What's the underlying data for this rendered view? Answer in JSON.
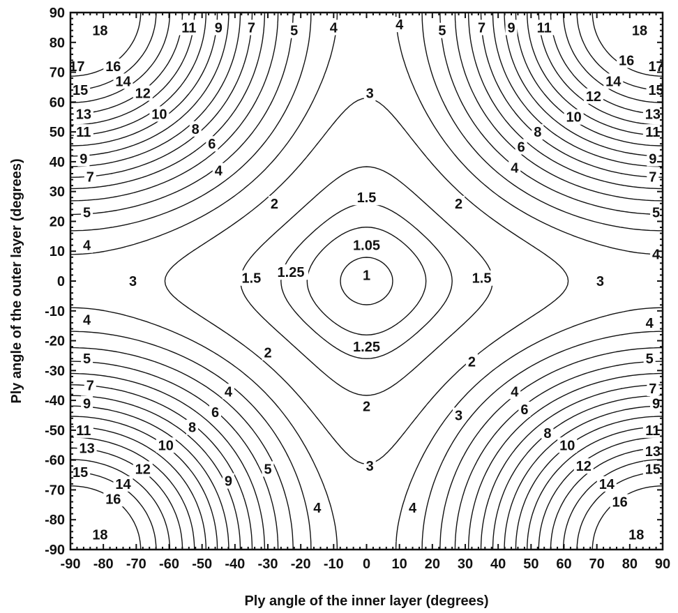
{
  "chart_data": {
    "type": "contour",
    "xlabel": "Ply angle of the inner layer (degrees)",
    "ylabel": "Ply angle of the outer layer (degrees)",
    "xlim": [
      -90,
      90
    ],
    "ylim": [
      -90,
      90
    ],
    "x_ticks": [
      "-90",
      "-80",
      "-70",
      "-60",
      "-50",
      "-40",
      "-30",
      "-20",
      "-10",
      "0",
      "10",
      "20",
      "30",
      "40",
      "50",
      "60",
      "70",
      "80",
      "90"
    ],
    "y_ticks": [
      "90",
      "80",
      "70",
      "60",
      "50",
      "40",
      "30",
      "20",
      "10",
      "0",
      "-10",
      "-20",
      "-30",
      "-40",
      "-50",
      "-60",
      "-70",
      "-80",
      "-90"
    ],
    "grid": false,
    "legend": "none",
    "contour_levels": [
      1.05,
      1.25,
      1.5,
      2,
      3,
      4,
      5,
      6,
      7,
      8,
      9,
      10,
      11,
      12,
      13,
      14,
      15,
      16,
      17,
      18
    ],
    "contour_labels": [
      {
        "text": "1",
        "x": 0,
        "y": 2
      },
      {
        "text": "1.05",
        "x": 0,
        "y": 12
      },
      {
        "text": "1.25",
        "x": -23,
        "y": 3
      },
      {
        "text": "1.25",
        "x": 0,
        "y": -22
      },
      {
        "text": "1.5",
        "x": -35,
        "y": 1
      },
      {
        "text": "1.5",
        "x": 35,
        "y": 1
      },
      {
        "text": "1.5",
        "x": 0,
        "y": 28
      },
      {
        "text": "2",
        "x": -28,
        "y": 26
      },
      {
        "text": "2",
        "x": 28,
        "y": 26
      },
      {
        "text": "2",
        "x": -30,
        "y": -24
      },
      {
        "text": "2",
        "x": 32,
        "y": -27
      },
      {
        "text": "2",
        "x": 0,
        "y": -42
      },
      {
        "text": "3",
        "x": -71,
        "y": 0
      },
      {
        "text": "3",
        "x": 71,
        "y": 0
      },
      {
        "text": "3",
        "x": 1,
        "y": 63
      },
      {
        "text": "3",
        "x": 1,
        "y": -62
      },
      {
        "text": "3",
        "x": 28,
        "y": -45
      },
      {
        "text": "4",
        "x": -45,
        "y": 37
      },
      {
        "text": "4",
        "x": 45,
        "y": 38
      },
      {
        "text": "4",
        "x": -42,
        "y": -37
      },
      {
        "text": "4",
        "x": 45,
        "y": -37
      },
      {
        "text": "4",
        "x": -85,
        "y": 12
      },
      {
        "text": "4",
        "x": 88,
        "y": 9
      },
      {
        "text": "4",
        "x": -85,
        "y": -13
      },
      {
        "text": "4",
        "x": 86,
        "y": -14
      },
      {
        "text": "4",
        "x": -10,
        "y": 85
      },
      {
        "text": "4",
        "x": 10,
        "y": 86
      },
      {
        "text": "4",
        "x": -15,
        "y": -76
      },
      {
        "text": "4",
        "x": 14,
        "y": -76
      },
      {
        "text": "5",
        "x": -85,
        "y": 23
      },
      {
        "text": "5",
        "x": 88,
        "y": 23
      },
      {
        "text": "5",
        "x": -85,
        "y": -26
      },
      {
        "text": "5",
        "x": 86,
        "y": -26
      },
      {
        "text": "5",
        "x": -22,
        "y": 84
      },
      {
        "text": "5",
        "x": 23,
        "y": 84
      },
      {
        "text": "5",
        "x": -30,
        "y": -63
      },
      {
        "text": "6",
        "x": -47,
        "y": 46
      },
      {
        "text": "6",
        "x": 47,
        "y": 45
      },
      {
        "text": "6",
        "x": -46,
        "y": -44
      },
      {
        "text": "6",
        "x": 48,
        "y": -43
      },
      {
        "text": "7",
        "x": -84,
        "y": 35
      },
      {
        "text": "7",
        "x": 87,
        "y": 35
      },
      {
        "text": "7",
        "x": -84,
        "y": -35
      },
      {
        "text": "7",
        "x": 87,
        "y": -36
      },
      {
        "text": "7",
        "x": -35,
        "y": 85
      },
      {
        "text": "7",
        "x": 35,
        "y": 85
      },
      {
        "text": "8",
        "x": -52,
        "y": 51
      },
      {
        "text": "8",
        "x": 52,
        "y": 50
      },
      {
        "text": "8",
        "x": -53,
        "y": -49
      },
      {
        "text": "8",
        "x": 55,
        "y": -51
      },
      {
        "text": "9",
        "x": -86,
        "y": 41
      },
      {
        "text": "9",
        "x": 87,
        "y": 41
      },
      {
        "text": "9",
        "x": -85,
        "y": -41
      },
      {
        "text": "9",
        "x": 88,
        "y": -41
      },
      {
        "text": "9",
        "x": -45,
        "y": 85
      },
      {
        "text": "9",
        "x": 44,
        "y": 85
      },
      {
        "text": "9",
        "x": -42,
        "y": -67
      },
      {
        "text": "10",
        "x": -63,
        "y": 56
      },
      {
        "text": "10",
        "x": 63,
        "y": 55
      },
      {
        "text": "10",
        "x": -61,
        "y": -55
      },
      {
        "text": "10",
        "x": 61,
        "y": -55
      },
      {
        "text": "11",
        "x": -86,
        "y": 50
      },
      {
        "text": "11",
        "x": 87,
        "y": 50
      },
      {
        "text": "11",
        "x": -86,
        "y": -50
      },
      {
        "text": "11",
        "x": 87,
        "y": -50
      },
      {
        "text": "11",
        "x": -54,
        "y": 85
      },
      {
        "text": "11",
        "x": 54,
        "y": 85
      },
      {
        "text": "12",
        "x": -68,
        "y": 63
      },
      {
        "text": "12",
        "x": 69,
        "y": 62
      },
      {
        "text": "12",
        "x": -68,
        "y": -63
      },
      {
        "text": "12",
        "x": 66,
        "y": -62
      },
      {
        "text": "13",
        "x": -86,
        "y": 56
      },
      {
        "text": "13",
        "x": 87,
        "y": 56
      },
      {
        "text": "13",
        "x": -85,
        "y": -56
      },
      {
        "text": "13",
        "x": 87,
        "y": -57
      },
      {
        "text": "14",
        "x": -74,
        "y": 67
      },
      {
        "text": "14",
        "x": 75,
        "y": 67
      },
      {
        "text": "14",
        "x": -74,
        "y": -68
      },
      {
        "text": "14",
        "x": 73,
        "y": -68
      },
      {
        "text": "15",
        "x": -87,
        "y": 64
      },
      {
        "text": "15",
        "x": 88,
        "y": 64
      },
      {
        "text": "15",
        "x": -87,
        "y": -64
      },
      {
        "text": "15",
        "x": 87,
        "y": -63
      },
      {
        "text": "16",
        "x": -77,
        "y": 72
      },
      {
        "text": "16",
        "x": 79,
        "y": 74
      },
      {
        "text": "16",
        "x": -77,
        "y": -73
      },
      {
        "text": "16",
        "x": 77,
        "y": -74
      },
      {
        "text": "17",
        "x": -88,
        "y": 72
      },
      {
        "text": "17",
        "x": 88,
        "y": 72
      },
      {
        "text": "18",
        "x": -81,
        "y": 84
      },
      {
        "text": "18",
        "x": 83,
        "y": 84
      },
      {
        "text": "18",
        "x": -81,
        "y": -85
      },
      {
        "text": "18",
        "x": 82,
        "y": -85
      }
    ]
  }
}
